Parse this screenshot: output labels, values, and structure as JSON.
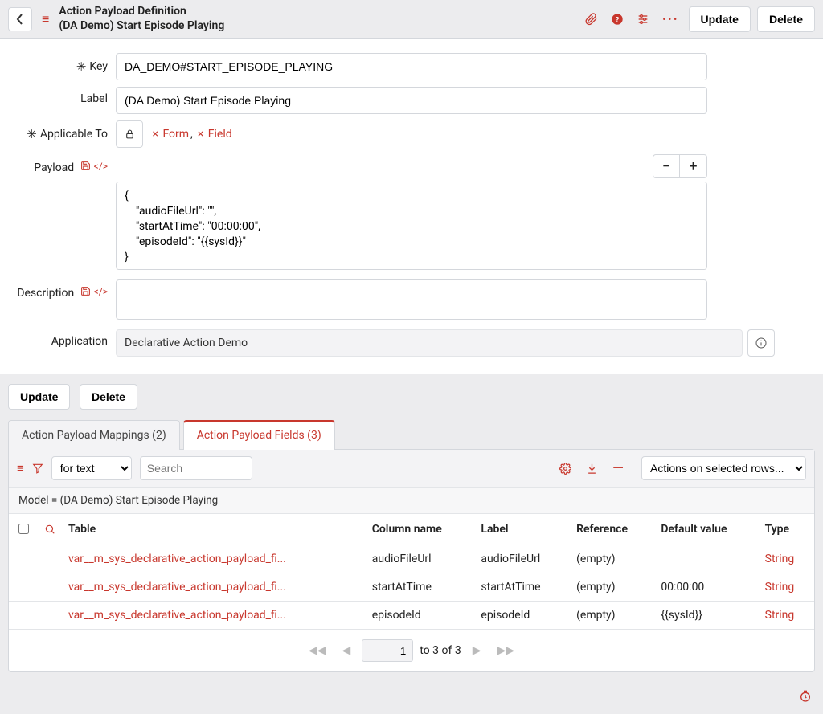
{
  "colors": {
    "accent": "#c8372d",
    "border": "#d4d7dc",
    "bg_grey": "#ececee",
    "bg_grey_mid": "#f3f3f5",
    "bg_grey_light": "#f7f7f8"
  },
  "header": {
    "title": "Action Payload Definition",
    "subtitle": "(DA Demo) Start Episode Playing",
    "buttons": {
      "update": "Update",
      "delete": "Delete"
    }
  },
  "form": {
    "key": {
      "label": "Key",
      "value": "DA_DEMO#START_EPISODE_PLAYING",
      "required": true
    },
    "label": {
      "label": "Label",
      "value": "(DA Demo) Start Episode Playing"
    },
    "applicable_to": {
      "label": "Applicable To",
      "required": true,
      "chips": [
        "Form",
        "Field"
      ]
    },
    "payload": {
      "label": "Payload",
      "value": "{\n    \"audioFileUrl\": \"\",\n    \"startAtTime\": \"00:00:00\",\n    \"episodeId\": \"{{sysId}}\"\n}"
    },
    "description": {
      "label": "Description",
      "value": ""
    },
    "application": {
      "label": "Application",
      "value": "Declarative Action Demo"
    }
  },
  "sub_toolbar": {
    "update": "Update",
    "delete": "Delete"
  },
  "tabs": [
    {
      "id": "mappings",
      "label": "Action Payload Mappings (2)",
      "active": false
    },
    {
      "id": "fields",
      "label": "Action Payload Fields (3)",
      "active": true
    }
  ],
  "list": {
    "search_mode_options": [
      "for text"
    ],
    "search_mode": "for text",
    "search_placeholder": "Search",
    "actions_placeholder": "Actions on selected rows...",
    "model_text": "Model = (DA Demo) Start Episode Playing",
    "columns": [
      "Table",
      "Column name",
      "Label",
      "Reference",
      "Default value",
      "Type"
    ],
    "rows": [
      {
        "table": "var__m_sys_declarative_action_payload_fi...",
        "column": "audioFileUrl",
        "label": "audioFileUrl",
        "reference": "(empty)",
        "default": "",
        "type": "String"
      },
      {
        "table": "var__m_sys_declarative_action_payload_fi...",
        "column": "startAtTime",
        "label": "startAtTime",
        "reference": "(empty)",
        "default": "00:00:00",
        "type": "String"
      },
      {
        "table": "var__m_sys_declarative_action_payload_fi...",
        "column": "episodeId",
        "label": "episodeId",
        "reference": "(empty)",
        "default": "{{sysId}}",
        "type": "String"
      }
    ],
    "pager": {
      "page": "1",
      "summary": "to 3 of 3"
    }
  }
}
